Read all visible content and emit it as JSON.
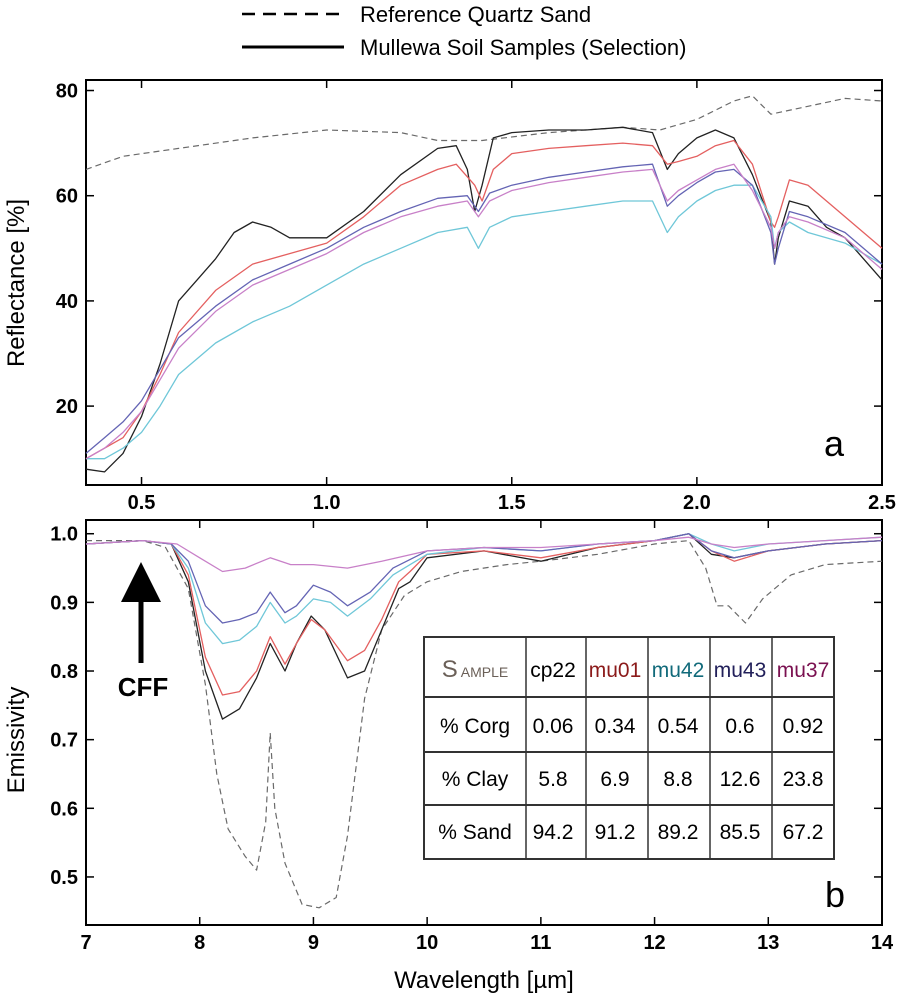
{
  "legend": {
    "reference_label": "Reference Quartz Sand",
    "samples_label": "Mullewa Soil Samples (Selection)"
  },
  "colors": {
    "reference": "#6a6a6a",
    "cp22": "#222222",
    "mu01": "#e46060",
    "mu42": "#6fc7d8",
    "mu43": "#6464b4",
    "mu37": "#c880c8",
    "header_mu01": "#8b1a1a",
    "header_mu42": "#116a7a",
    "header_mu43": "#22205a",
    "header_mu37": "#7a1050"
  },
  "annotations": {
    "panel_a": "a",
    "panel_b": "b",
    "cff": "CFF"
  },
  "table": {
    "header_sample_big": "S",
    "header_sample_small": "AMPLE",
    "sample_ids": [
      "cp22",
      "mu01",
      "mu42",
      "mu43",
      "mu37"
    ],
    "rows": [
      {
        "label": "% Corg",
        "values": [
          "0.06",
          "0.34",
          "0.54",
          "0.6",
          "0.92"
        ]
      },
      {
        "label": "% Clay",
        "values": [
          "5.8",
          "6.9",
          "8.8",
          "12.6",
          "23.8"
        ]
      },
      {
        "label": "% Sand",
        "values": [
          "94.2",
          "91.2",
          "89.2",
          "85.5",
          "67.2"
        ]
      }
    ]
  },
  "chart_data": [
    {
      "type": "line",
      "panel": "a",
      "title": "",
      "xlabel": "",
      "ylabel": "Reflectance [%]",
      "xlim": [
        0.35,
        2.5
      ],
      "ylim": [
        5,
        82
      ],
      "xticks": [
        0.5,
        1.0,
        1.5,
        2.0,
        2.5
      ],
      "xtick_labels": [
        "0.5",
        "1.0",
        "1.5",
        "2.0",
        "2.5"
      ],
      "yticks": [
        20,
        40,
        60,
        80
      ],
      "ytick_labels": [
        "20",
        "40",
        "60",
        "80"
      ],
      "series": [
        {
          "name": "Reference Quartz Sand",
          "style": "dashed",
          "color_key": "reference",
          "x": [
            0.35,
            0.45,
            0.6,
            0.8,
            1.0,
            1.2,
            1.3,
            1.42,
            1.6,
            1.8,
            1.9,
            2.0,
            2.1,
            2.15,
            2.2,
            2.3,
            2.4,
            2.5
          ],
          "y": [
            65,
            67.5,
            69,
            71,
            72.5,
            72,
            70.5,
            70.5,
            72,
            73,
            72.5,
            74.5,
            78,
            79,
            75.5,
            77,
            78.5,
            78
          ]
        },
        {
          "name": "cp22",
          "style": "solid",
          "color_key": "cp22",
          "x": [
            0.35,
            0.4,
            0.45,
            0.5,
            0.55,
            0.6,
            0.65,
            0.7,
            0.75,
            0.8,
            0.85,
            0.9,
            1.0,
            1.1,
            1.2,
            1.3,
            1.35,
            1.38,
            1.4,
            1.42,
            1.45,
            1.5,
            1.6,
            1.7,
            1.8,
            1.88,
            1.92,
            1.95,
            2.0,
            2.05,
            2.1,
            2.15,
            2.2,
            2.21,
            2.22,
            2.25,
            2.3,
            2.35,
            2.4,
            2.45,
            2.5
          ],
          "y": [
            8,
            7.5,
            11,
            18,
            28,
            40,
            44,
            48,
            53,
            55,
            54,
            52,
            52,
            57,
            64,
            69,
            69.5,
            65,
            57,
            62,
            71,
            72,
            72.5,
            72.5,
            73,
            72,
            65,
            68,
            71,
            72.5,
            71,
            64,
            55,
            47,
            52,
            59,
            58,
            54,
            52,
            48,
            44
          ]
        },
        {
          "name": "mu01",
          "style": "solid",
          "color_key": "mu01",
          "x": [
            0.35,
            0.4,
            0.45,
            0.5,
            0.55,
            0.6,
            0.7,
            0.8,
            0.9,
            1.0,
            1.1,
            1.2,
            1.3,
            1.35,
            1.4,
            1.42,
            1.45,
            1.5,
            1.6,
            1.7,
            1.8,
            1.88,
            1.92,
            1.95,
            2.0,
            2.05,
            2.1,
            2.15,
            2.2,
            2.21,
            2.22,
            2.25,
            2.3,
            2.4,
            2.5
          ],
          "y": [
            10,
            12,
            14,
            19,
            26,
            34,
            42,
            47,
            49,
            51,
            56,
            62,
            65,
            66,
            62,
            59,
            65,
            68,
            69,
            69.5,
            70,
            69.5,
            66,
            66.5,
            67.5,
            69.5,
            70.5,
            66,
            55,
            54,
            56,
            63,
            62,
            56,
            50
          ]
        },
        {
          "name": "mu42",
          "style": "solid",
          "color_key": "mu42",
          "x": [
            0.35,
            0.4,
            0.45,
            0.5,
            0.55,
            0.6,
            0.7,
            0.8,
            0.9,
            1.0,
            1.1,
            1.2,
            1.3,
            1.38,
            1.41,
            1.44,
            1.5,
            1.6,
            1.7,
            1.8,
            1.88,
            1.92,
            1.95,
            2.0,
            2.05,
            2.1,
            2.15,
            2.2,
            2.21,
            2.22,
            2.25,
            2.3,
            2.4,
            2.5
          ],
          "y": [
            10,
            10,
            12,
            15,
            20,
            26,
            32,
            36,
            39,
            43,
            47,
            50,
            53,
            54,
            50,
            54,
            56,
            57,
            58,
            59,
            59,
            53,
            56,
            59,
            61,
            62,
            62,
            56,
            50,
            53,
            55,
            53,
            51,
            47
          ]
        },
        {
          "name": "mu43",
          "style": "solid",
          "color_key": "mu43",
          "x": [
            0.35,
            0.4,
            0.45,
            0.5,
            0.55,
            0.6,
            0.7,
            0.8,
            0.9,
            1.0,
            1.1,
            1.2,
            1.3,
            1.38,
            1.41,
            1.44,
            1.5,
            1.6,
            1.7,
            1.8,
            1.88,
            1.92,
            1.95,
            2.0,
            2.05,
            2.1,
            2.15,
            2.2,
            2.21,
            2.22,
            2.25,
            2.3,
            2.4,
            2.5
          ],
          "y": [
            11,
            14,
            17,
            21,
            27,
            33,
            39,
            44,
            47,
            50,
            54,
            57,
            59.5,
            60,
            57,
            60.5,
            62,
            63.5,
            64.5,
            65.5,
            66,
            58,
            60,
            62.5,
            64.5,
            65,
            62,
            53,
            47,
            50,
            57,
            56,
            53,
            47
          ]
        },
        {
          "name": "mu37",
          "style": "solid",
          "color_key": "mu37",
          "x": [
            0.35,
            0.4,
            0.45,
            0.5,
            0.55,
            0.6,
            0.7,
            0.8,
            0.9,
            1.0,
            1.1,
            1.2,
            1.3,
            1.38,
            1.41,
            1.44,
            1.5,
            1.6,
            1.7,
            1.8,
            1.88,
            1.92,
            1.95,
            2.0,
            2.05,
            2.1,
            2.15,
            2.2,
            2.21,
            2.22,
            2.25,
            2.3,
            2.4,
            2.5
          ],
          "y": [
            10,
            12,
            15,
            19,
            25,
            31,
            38,
            43,
            46,
            49,
            53,
            56,
            58,
            59,
            56,
            59,
            61,
            62.5,
            63.5,
            64.5,
            65,
            59,
            61,
            63,
            65,
            66,
            61,
            54,
            50,
            53,
            56,
            55,
            52,
            46
          ]
        }
      ]
    },
    {
      "type": "line",
      "panel": "b",
      "title": "",
      "xlabel": "Wavelength [µm]",
      "ylabel": "Emissivity",
      "xlim": [
        7,
        14
      ],
      "ylim": [
        0.43,
        1.02
      ],
      "xticks": [
        7,
        8,
        9,
        10,
        11,
        12,
        13,
        14
      ],
      "xtick_labels": [
        "7",
        "8",
        "9",
        "10",
        "11",
        "12",
        "13",
        "14"
      ],
      "yticks": [
        0.5,
        0.6,
        0.7,
        0.8,
        0.9,
        1.0
      ],
      "ytick_labels": [
        "0.5",
        "0.6",
        "0.7",
        "0.8",
        "0.9",
        "1.0"
      ],
      "series": [
        {
          "name": "Reference Quartz Sand",
          "style": "dashed",
          "color_key": "reference",
          "x": [
            7,
            7.5,
            7.7,
            7.9,
            8.05,
            8.15,
            8.25,
            8.4,
            8.5,
            8.58,
            8.62,
            8.66,
            8.75,
            8.9,
            9.05,
            9.2,
            9.3,
            9.45,
            9.6,
            9.8,
            10,
            10.3,
            10.7,
            11,
            11.5,
            12,
            12.3,
            12.45,
            12.55,
            12.65,
            12.8,
            12.95,
            13.2,
            13.5,
            14
          ],
          "y": [
            0.99,
            0.99,
            0.98,
            0.92,
            0.78,
            0.65,
            0.57,
            0.53,
            0.51,
            0.58,
            0.71,
            0.6,
            0.52,
            0.46,
            0.455,
            0.47,
            0.56,
            0.76,
            0.86,
            0.91,
            0.93,
            0.945,
            0.955,
            0.96,
            0.97,
            0.985,
            0.99,
            0.95,
            0.895,
            0.895,
            0.87,
            0.905,
            0.94,
            0.955,
            0.96
          ]
        },
        {
          "name": "cp22",
          "style": "solid",
          "color_key": "cp22",
          "x": [
            7,
            7.5,
            7.75,
            7.9,
            8.05,
            8.2,
            8.35,
            8.5,
            8.62,
            8.75,
            8.85,
            8.98,
            9.1,
            9.3,
            9.45,
            9.6,
            9.75,
            9.85,
            10,
            10.5,
            11,
            11.5,
            12,
            12.3,
            12.5,
            12.7,
            13,
            13.5,
            14
          ],
          "y": [
            0.985,
            0.99,
            0.985,
            0.93,
            0.8,
            0.73,
            0.745,
            0.79,
            0.84,
            0.8,
            0.84,
            0.88,
            0.86,
            0.79,
            0.8,
            0.86,
            0.92,
            0.93,
            0.965,
            0.975,
            0.96,
            0.98,
            0.99,
            1.0,
            0.97,
            0.965,
            0.975,
            0.985,
            0.99
          ]
        },
        {
          "name": "mu01",
          "style": "solid",
          "color_key": "mu01",
          "x": [
            7,
            7.5,
            7.75,
            7.9,
            8.05,
            8.2,
            8.35,
            8.5,
            8.62,
            8.75,
            8.85,
            8.98,
            9.1,
            9.3,
            9.45,
            9.6,
            9.75,
            9.85,
            10,
            10.5,
            11,
            11.5,
            12,
            12.3,
            12.5,
            12.7,
            13,
            13.5,
            14
          ],
          "y": [
            0.985,
            0.99,
            0.985,
            0.94,
            0.82,
            0.765,
            0.77,
            0.8,
            0.85,
            0.81,
            0.84,
            0.875,
            0.86,
            0.815,
            0.83,
            0.875,
            0.93,
            0.945,
            0.97,
            0.975,
            0.965,
            0.98,
            0.99,
            1.0,
            0.975,
            0.96,
            0.975,
            0.985,
            0.99
          ]
        },
        {
          "name": "mu42",
          "style": "solid",
          "color_key": "mu42",
          "x": [
            7,
            7.5,
            7.75,
            7.9,
            8.05,
            8.2,
            8.35,
            8.5,
            8.62,
            8.75,
            8.85,
            9.0,
            9.15,
            9.3,
            9.5,
            9.7,
            10,
            10.5,
            11,
            11.5,
            12,
            12.3,
            12.5,
            12.7,
            13,
            13.5,
            14
          ],
          "y": [
            0.985,
            0.99,
            0.985,
            0.95,
            0.87,
            0.84,
            0.845,
            0.865,
            0.9,
            0.87,
            0.88,
            0.905,
            0.9,
            0.88,
            0.905,
            0.94,
            0.97,
            0.98,
            0.975,
            0.985,
            0.99,
            1.0,
            0.985,
            0.975,
            0.985,
            0.99,
            0.995
          ]
        },
        {
          "name": "mu43",
          "style": "solid",
          "color_key": "mu43",
          "x": [
            7,
            7.5,
            7.75,
            7.9,
            8.05,
            8.2,
            8.35,
            8.5,
            8.62,
            8.75,
            8.85,
            9.0,
            9.15,
            9.3,
            9.5,
            9.7,
            10,
            10.5,
            11,
            11.5,
            12,
            12.3,
            12.5,
            12.7,
            13,
            13.5,
            14
          ],
          "y": [
            0.985,
            0.99,
            0.985,
            0.96,
            0.895,
            0.87,
            0.875,
            0.885,
            0.915,
            0.885,
            0.895,
            0.925,
            0.915,
            0.895,
            0.915,
            0.95,
            0.975,
            0.98,
            0.975,
            0.985,
            0.99,
            1.0,
            0.975,
            0.965,
            0.975,
            0.985,
            0.99
          ]
        },
        {
          "name": "mu37",
          "style": "solid",
          "color_key": "mu37",
          "x": [
            7,
            7.5,
            7.8,
            8.0,
            8.2,
            8.4,
            8.62,
            8.8,
            9.0,
            9.3,
            9.6,
            10,
            10.5,
            11,
            11.5,
            12,
            12.3,
            12.5,
            12.7,
            13,
            13.5,
            14
          ],
          "y": [
            0.985,
            0.99,
            0.985,
            0.965,
            0.945,
            0.95,
            0.965,
            0.955,
            0.955,
            0.95,
            0.96,
            0.975,
            0.98,
            0.98,
            0.985,
            0.99,
            0.995,
            0.985,
            0.98,
            0.985,
            0.99,
            0.995
          ]
        }
      ]
    }
  ]
}
